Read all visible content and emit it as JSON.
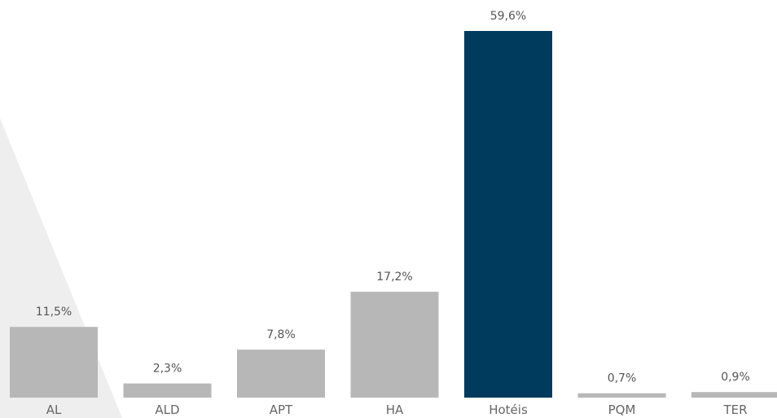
{
  "chart_data": {
    "type": "bar",
    "title": "",
    "xlabel": "",
    "ylabel": "",
    "categories": [
      "AL",
      "ALD",
      "APT",
      "HA",
      "Hotéis",
      "PQM",
      "TER"
    ],
    "values": [
      11.5,
      2.3,
      7.8,
      17.2,
      59.6,
      0.7,
      0.9
    ],
    "data_labels": [
      "11,5%",
      "2,3%",
      "7,8%",
      "17,2%",
      "59,6%",
      "0,7%",
      "0,9%"
    ],
    "ylim": [
      0,
      59.6
    ],
    "grid": false,
    "legend": "none",
    "colors": {
      "default_bar": "#b7b7b7",
      "highlight_bar": "#003a5d",
      "highlight_category": "Hotéis",
      "background_wedge": "#eeeeee"
    }
  }
}
